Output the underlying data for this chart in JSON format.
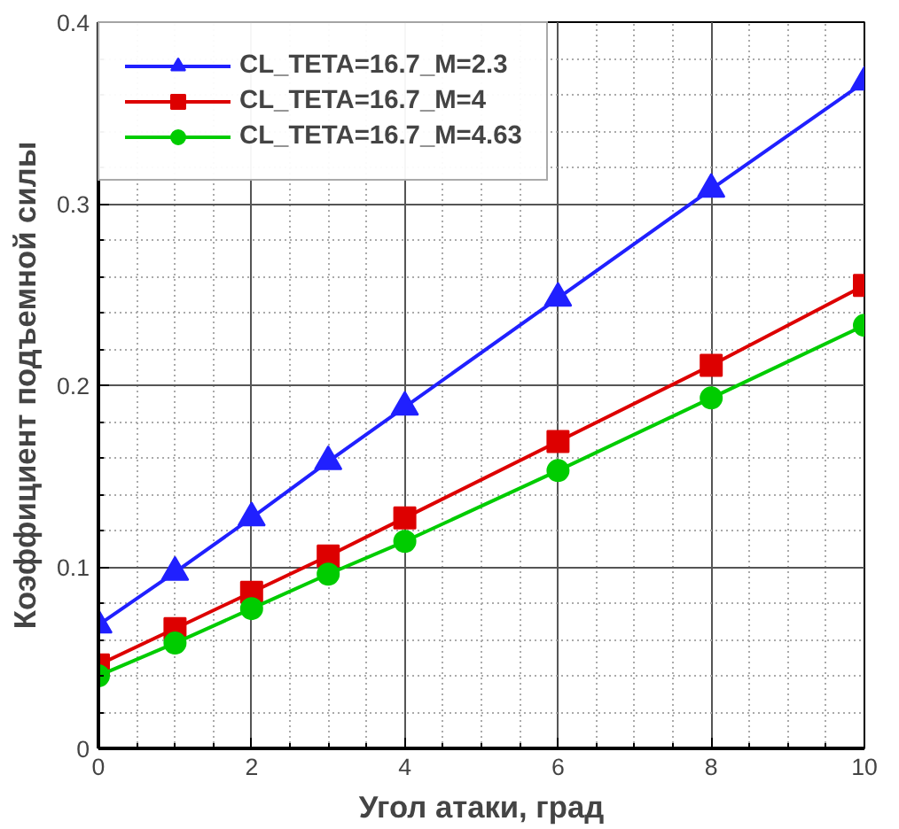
{
  "chart_data": {
    "type": "line",
    "xlabel": "Угол атаки, град",
    "ylabel": "Коэффициент подъемной силы",
    "x": [
      0,
      1,
      2,
      3,
      4,
      6,
      8,
      10
    ],
    "series": [
      {
        "name": "CL_TETA=16.7_M=2.3",
        "color": "#2020ff",
        "marker": "triangle",
        "values": [
          0.068,
          0.097,
          0.127,
          0.158,
          0.188,
          0.248,
          0.308,
          0.367
        ]
      },
      {
        "name": "CL_TETA=16.7_M=4",
        "color": "#dd0000",
        "marker": "square",
        "values": [
          0.046,
          0.066,
          0.086,
          0.106,
          0.127,
          0.169,
          0.211,
          0.255
        ]
      },
      {
        "name": "CL_TETA=16.7_M=4.63",
        "color": "#00cc00",
        "marker": "circle",
        "values": [
          0.04,
          0.058,
          0.077,
          0.096,
          0.114,
          0.153,
          0.193,
          0.233
        ]
      }
    ],
    "xlim": [
      0,
      10
    ],
    "ylim": [
      0,
      0.4
    ],
    "xticks": [
      0,
      2,
      4,
      6,
      8,
      10
    ],
    "yticks": [
      0,
      0.1,
      0.2,
      0.3,
      0.4
    ],
    "grid": true,
    "legend": "top left",
    "line_style": "solid"
  }
}
